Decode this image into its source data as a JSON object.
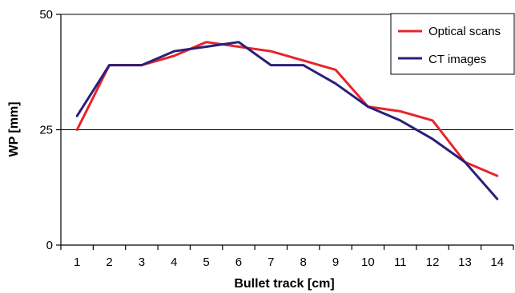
{
  "chart_data": {
    "type": "line",
    "title": "",
    "xlabel": "Bullet track [cm]",
    "ylabel": "WP [mm]",
    "x": [
      1,
      2,
      3,
      4,
      5,
      6,
      7,
      8,
      9,
      10,
      11,
      12,
      13,
      14
    ],
    "x_tick_labels": [
      "1",
      "2",
      "3",
      "4",
      "5",
      "6",
      "7",
      "8",
      "9",
      "10",
      "11",
      "12",
      "13",
      "14"
    ],
    "xlim": [
      0.5,
      14.5
    ],
    "ylim": [
      0,
      50
    ],
    "y_ticks": [
      0,
      25,
      50
    ],
    "y_tick_labels": [
      "0",
      "25",
      "50"
    ],
    "grid": "horizontal",
    "legend_position": "top-right",
    "series": [
      {
        "name": "Optical scans",
        "color": "#e8242a",
        "values": [
          25,
          39,
          39,
          41,
          44,
          43,
          42,
          40,
          38,
          30,
          29,
          27,
          18,
          15
        ]
      },
      {
        "name": "CT images",
        "color": "#2b1f7a",
        "values": [
          28,
          39,
          39,
          42,
          43,
          44,
          39,
          39,
          35,
          30,
          27,
          23,
          18,
          10
        ]
      }
    ]
  }
}
